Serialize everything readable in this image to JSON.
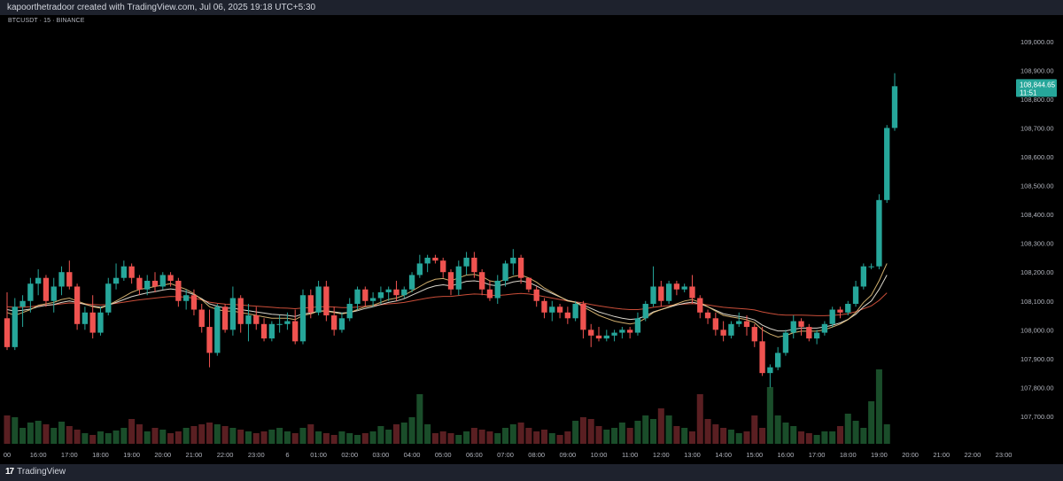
{
  "header": {
    "caption": "kapoorthetradoor created with TradingView.com, Jul 06, 2025 19:18 UTC+5:30"
  },
  "symbol_label": "BTCUSDT · 15 · BINANCE",
  "footer": {
    "logo": "17",
    "brand": "TradingView"
  },
  "colors": {
    "up": "#26a69a",
    "down": "#ef5350",
    "vol_up": "#1a4d2a",
    "vol_down": "#5a1f22",
    "ma_fast": "#e8c27a",
    "ma_mid": "#f2ede2",
    "ma_slow": "#e0563f",
    "price_tag": "#26a69a"
  },
  "last_price": {
    "value": "108,844.65",
    "countdown": "11:51"
  },
  "chart_data": {
    "type": "candlestick",
    "title": "",
    "symbol": "BTCUSDT",
    "interval": "15",
    "exchange": "BINANCE",
    "price_axis_ticks": [
      "109,000.00",
      "108,900.00",
      "108,800.00",
      "108,700.00",
      "108,600.00",
      "108,500.00",
      "108,400.00",
      "108,300.00",
      "108,200.00",
      "108,100.00",
      "108,000.00",
      "107,900.00",
      "107,800.00",
      "107,700.00"
    ],
    "price_axis_values": [
      109000,
      108900,
      108800,
      108700,
      108600,
      108500,
      108400,
      108300,
      108200,
      108100,
      108000,
      107900,
      107800,
      107700
    ],
    "ylim": [
      107660,
      109030
    ],
    "time_axis_labels": [
      "00",
      "16:00",
      "17:00",
      "18:00",
      "19:00",
      "20:00",
      "21:00",
      "22:00",
      "23:00",
      "6",
      "01:00",
      "02:00",
      "03:00",
      "04:00",
      "05:00",
      "06:00",
      "07:00",
      "08:00",
      "09:00",
      "10:00",
      "11:00",
      "12:00",
      "13:00",
      "14:00",
      "15:00",
      "16:00",
      "17:00",
      "18:00",
      "19:00",
      "20:00",
      "21:00",
      "22:00",
      "23:00"
    ],
    "time_axis_bar_index": [
      0,
      4,
      8,
      12,
      16,
      20,
      24,
      28,
      32,
      36,
      40,
      44,
      48,
      52,
      56,
      60,
      64,
      68,
      72,
      76,
      80,
      84,
      88,
      92,
      96,
      100,
      104,
      108,
      112,
      116,
      120,
      124,
      128
    ],
    "candles": [
      [
        108040,
        108130,
        107930,
        107940
      ],
      [
        107940,
        108110,
        107930,
        108080
      ],
      [
        108080,
        108120,
        108010,
        108100
      ],
      [
        108100,
        108180,
        108060,
        108160
      ],
      [
        108160,
        108210,
        108120,
        108180
      ],
      [
        108180,
        108190,
        108080,
        108100
      ],
      [
        108100,
        108180,
        108060,
        108150
      ],
      [
        108150,
        108220,
        108120,
        108200
      ],
      [
        108200,
        108240,
        108140,
        108150
      ],
      [
        108150,
        108160,
        108000,
        108020
      ],
      [
        108020,
        108080,
        108000,
        108060
      ],
      [
        108060,
        108120,
        107970,
        107990
      ],
      [
        107990,
        108080,
        107980,
        108060
      ],
      [
        108060,
        108180,
        108050,
        108160
      ],
      [
        108160,
        108230,
        108140,
        108180
      ],
      [
        108180,
        108240,
        108170,
        108220
      ],
      [
        108220,
        108230,
        108160,
        108180
      ],
      [
        108180,
        108190,
        108120,
        108140
      ],
      [
        108140,
        108190,
        108120,
        108170
      ],
      [
        108170,
        108200,
        108130,
        108150
      ],
      [
        108150,
        108200,
        108140,
        108190
      ],
      [
        108190,
        108200,
        108150,
        108170
      ],
      [
        108170,
        108180,
        108080,
        108100
      ],
      [
        108100,
        108140,
        108070,
        108120
      ],
      [
        108120,
        108140,
        108050,
        108070
      ],
      [
        108070,
        108090,
        107990,
        108010
      ],
      [
        108010,
        108070,
        107870,
        107920
      ],
      [
        107920,
        108090,
        107910,
        108080
      ],
      [
        108080,
        108090,
        107990,
        108000
      ],
      [
        108000,
        108150,
        107980,
        108110
      ],
      [
        108110,
        108120,
        107990,
        108020
      ],
      [
        108020,
        108090,
        107960,
        108050
      ],
      [
        108050,
        108080,
        108000,
        108020
      ],
      [
        108020,
        108040,
        107960,
        107970
      ],
      [
        107970,
        108030,
        107960,
        108020
      ],
      [
        108020,
        108050,
        107990,
        108020
      ],
      [
        108020,
        108060,
        108000,
        108030
      ],
      [
        108030,
        108070,
        107950,
        107960
      ],
      [
        107960,
        108140,
        107950,
        108120
      ],
      [
        108120,
        108140,
        108040,
        108060
      ],
      [
        108060,
        108170,
        108050,
        108150
      ],
      [
        108150,
        108170,
        108030,
        108050
      ],
      [
        108050,
        108080,
        107980,
        108000
      ],
      [
        108000,
        108060,
        107990,
        108040
      ],
      [
        108040,
        108110,
        108030,
        108090
      ],
      [
        108090,
        108150,
        108070,
        108140
      ],
      [
        108140,
        108150,
        108080,
        108100
      ],
      [
        108100,
        108130,
        108080,
        108110
      ],
      [
        108110,
        108150,
        108090,
        108130
      ],
      [
        108130,
        108150,
        108100,
        108140
      ],
      [
        108140,
        108170,
        108100,
        108120
      ],
      [
        108120,
        108150,
        108110,
        108140
      ],
      [
        108140,
        108200,
        108130,
        108190
      ],
      [
        108190,
        108260,
        108180,
        108230
      ],
      [
        108230,
        108260,
        108200,
        108250
      ],
      [
        108250,
        108260,
        108230,
        108240
      ],
      [
        108240,
        108250,
        108180,
        108200
      ],
      [
        108200,
        108210,
        108120,
        108140
      ],
      [
        108140,
        108240,
        108120,
        108220
      ],
      [
        108220,
        108270,
        108190,
        108250
      ],
      [
        108250,
        108270,
        108180,
        108200
      ],
      [
        108200,
        108210,
        108120,
        108140
      ],
      [
        108140,
        108170,
        108100,
        108110
      ],
      [
        108110,
        108190,
        108090,
        108170
      ],
      [
        108170,
        108240,
        108150,
        108230
      ],
      [
        108230,
        108280,
        108190,
        108250
      ],
      [
        108250,
        108260,
        108160,
        108180
      ],
      [
        108180,
        108180,
        108130,
        108140
      ],
      [
        108140,
        108150,
        108080,
        108100
      ],
      [
        108100,
        108110,
        108040,
        108060
      ],
      [
        108060,
        108100,
        108030,
        108080
      ],
      [
        108080,
        108090,
        108040,
        108060
      ],
      [
        108060,
        108080,
        108020,
        108040
      ],
      [
        108040,
        108100,
        108030,
        108090
      ],
      [
        108090,
        108100,
        107970,
        108000
      ],
      [
        108000,
        108020,
        107940,
        107980
      ],
      [
        107980,
        108010,
        107960,
        107970
      ],
      [
        107970,
        108000,
        107960,
        107980
      ],
      [
        107980,
        108000,
        107960,
        107990
      ],
      [
        107990,
        108010,
        107970,
        108000
      ],
      [
        108000,
        108010,
        107970,
        107990
      ],
      [
        107990,
        108060,
        107980,
        108040
      ],
      [
        108040,
        108100,
        108030,
        108090
      ],
      [
        108090,
        108220,
        108080,
        108150
      ],
      [
        108150,
        108170,
        108080,
        108100
      ],
      [
        108100,
        108170,
        108090,
        108160
      ],
      [
        108160,
        108170,
        108120,
        108140
      ],
      [
        108140,
        108160,
        108130,
        108150
      ],
      [
        108150,
        108190,
        108090,
        108110
      ],
      [
        108110,
        108120,
        108040,
        108060
      ],
      [
        108060,
        108070,
        108020,
        108040
      ],
      [
        108040,
        108060,
        107980,
        108000
      ],
      [
        108000,
        108030,
        107960,
        107980
      ],
      [
        107980,
        108030,
        107970,
        108020
      ],
      [
        108020,
        108060,
        108010,
        108030
      ],
      [
        108030,
        108050,
        107980,
        108010
      ],
      [
        108010,
        108020,
        107940,
        107960
      ],
      [
        107960,
        108010,
        107840,
        107850
      ],
      [
        107850,
        107880,
        107800,
        107870
      ],
      [
        107870,
        107940,
        107860,
        107920
      ],
      [
        107920,
        108000,
        107910,
        107990
      ],
      [
        107990,
        108050,
        107970,
        108030
      ],
      [
        108030,
        108040,
        107980,
        108010
      ],
      [
        108010,
        108020,
        107960,
        107970
      ],
      [
        107970,
        108000,
        107950,
        107990
      ],
      [
        107990,
        108030,
        107980,
        108020
      ],
      [
        108020,
        108080,
        108010,
        108070
      ],
      [
        108070,
        108080,
        108040,
        108060
      ],
      [
        108060,
        108100,
        108050,
        108090
      ],
      [
        108090,
        108170,
        108080,
        108150
      ],
      [
        108150,
        108230,
        108140,
        108220
      ],
      [
        108220,
        108230,
        108210,
        108220
      ],
      [
        108220,
        108470,
        108210,
        108450
      ],
      [
        108450,
        108710,
        108440,
        108700
      ],
      [
        108700,
        108890,
        108690,
        108844.65
      ]
    ],
    "volume_max": 100,
    "volume": [
      32,
      30,
      18,
      24,
      26,
      22,
      18,
      25,
      20,
      16,
      12,
      10,
      14,
      12,
      15,
      18,
      28,
      22,
      14,
      18,
      16,
      12,
      14,
      18,
      20,
      22,
      24,
      22,
      20,
      18,
      16,
      14,
      12,
      14,
      16,
      18,
      14,
      12,
      18,
      22,
      14,
      12,
      10,
      14,
      12,
      10,
      12,
      14,
      20,
      16,
      22,
      24,
      30,
      56,
      22,
      12,
      14,
      12,
      10,
      14,
      18,
      16,
      14,
      12,
      18,
      22,
      24,
      18,
      14,
      16,
      12,
      10,
      14,
      26,
      30,
      28,
      20,
      16,
      18,
      24,
      18,
      26,
      32,
      28,
      40,
      32,
      20,
      18,
      14,
      56,
      28,
      22,
      18,
      16,
      12,
      14,
      32,
      18,
      64,
      32,
      24,
      20,
      14,
      12,
      10,
      14,
      14,
      20,
      34,
      26,
      18,
      48,
      84,
      22
    ],
    "ma_fast": [
      108060,
      108050,
      108060,
      108070,
      108085,
      108090,
      108095,
      108105,
      108110,
      108100,
      108090,
      108080,
      108075,
      108085,
      108100,
      108115,
      108130,
      108140,
      108145,
      108150,
      108155,
      108160,
      108150,
      108140,
      108125,
      108105,
      108080,
      108070,
      108065,
      108065,
      108060,
      108055,
      108050,
      108045,
      108040,
      108040,
      108040,
      108035,
      108050,
      108055,
      108065,
      108065,
      108060,
      108055,
      108060,
      108070,
      108080,
      108085,
      108095,
      108105,
      108110,
      108120,
      108135,
      108150,
      108165,
      108175,
      108178,
      108170,
      108180,
      108190,
      108192,
      108185,
      108170,
      108165,
      108175,
      108185,
      108190,
      108180,
      108165,
      108145,
      108130,
      108115,
      108100,
      108095,
      108080,
      108065,
      108050,
      108040,
      108030,
      108025,
      108020,
      108025,
      108040,
      108060,
      108070,
      108080,
      108090,
      108100,
      108105,
      108095,
      108080,
      108065,
      108050,
      108045,
      108040,
      108035,
      108025,
      108000,
      107985,
      107975,
      107980,
      107990,
      107995,
      107995,
      107995,
      108000,
      108010,
      108020,
      108035,
      108060,
      108095,
      108120,
      108170,
      108230
    ],
    "ma_mid": [
      108070,
      108065,
      108068,
      108072,
      108080,
      108085,
      108088,
      108095,
      108100,
      108095,
      108088,
      108082,
      108078,
      108085,
      108095,
      108105,
      108115,
      108122,
      108128,
      108132,
      108138,
      108142,
      108138,
      108132,
      108122,
      108108,
      108090,
      108082,
      108075,
      108075,
      108070,
      108066,
      108062,
      108058,
      108054,
      108052,
      108050,
      108046,
      108055,
      108058,
      108065,
      108066,
      108062,
      108058,
      108060,
      108066,
      108074,
      108080,
      108088,
      108095,
      108100,
      108108,
      108120,
      108132,
      108144,
      108152,
      108156,
      108152,
      108160,
      108168,
      108170,
      108166,
      108156,
      108152,
      108158,
      108166,
      108170,
      108164,
      108152,
      108138,
      108126,
      108114,
      108102,
      108096,
      108086,
      108074,
      108062,
      108054,
      108046,
      108040,
      108036,
      108038,
      108048,
      108062,
      108070,
      108078,
      108086,
      108092,
      108096,
      108090,
      108080,
      108068,
      108056,
      108050,
      108046,
      108042,
      108034,
      108016,
      108004,
      107996,
      107996,
      108002,
      108006,
      108006,
      108006,
      108010,
      108016,
      108024,
      108036,
      108054,
      108080,
      108100,
      108140,
      108190
    ],
    "ma_slow": [
      108080,
      108078,
      108078,
      108080,
      108083,
      108085,
      108087,
      108090,
      108093,
      108092,
      108090,
      108088,
      108086,
      108088,
      108092,
      108096,
      108100,
      108104,
      108107,
      108110,
      108113,
      108116,
      108115,
      108113,
      108110,
      108104,
      108096,
      108092,
      108089,
      108088,
      108086,
      108084,
      108082,
      108080,
      108078,
      108076,
      108075,
      108073,
      108076,
      108077,
      108080,
      108080,
      108079,
      108077,
      108077,
      108079,
      108082,
      108084,
      108087,
      108090,
      108092,
      108095,
      108100,
      108105,
      108110,
      108114,
      108116,
      108116,
      108119,
      108122,
      108124,
      108123,
      108120,
      108119,
      108121,
      108124,
      108126,
      108124,
      108120,
      108115,
      108110,
      108105,
      108100,
      108097,
      108093,
      108088,
      108083,
      108079,
      108075,
      108072,
      108070,
      108070,
      108073,
      108078,
      108081,
      108084,
      108087,
      108089,
      108091,
      108089,
      108086,
      108082,
      108078,
      108076,
      108074,
      108072,
      108069,
      108062,
      108057,
      108053,
      108051,
      108051,
      108051,
      108050,
      108049,
      108049,
      108050,
      108052,
      108056,
      108063,
      108073,
      108083,
      108102,
      108128
    ]
  }
}
